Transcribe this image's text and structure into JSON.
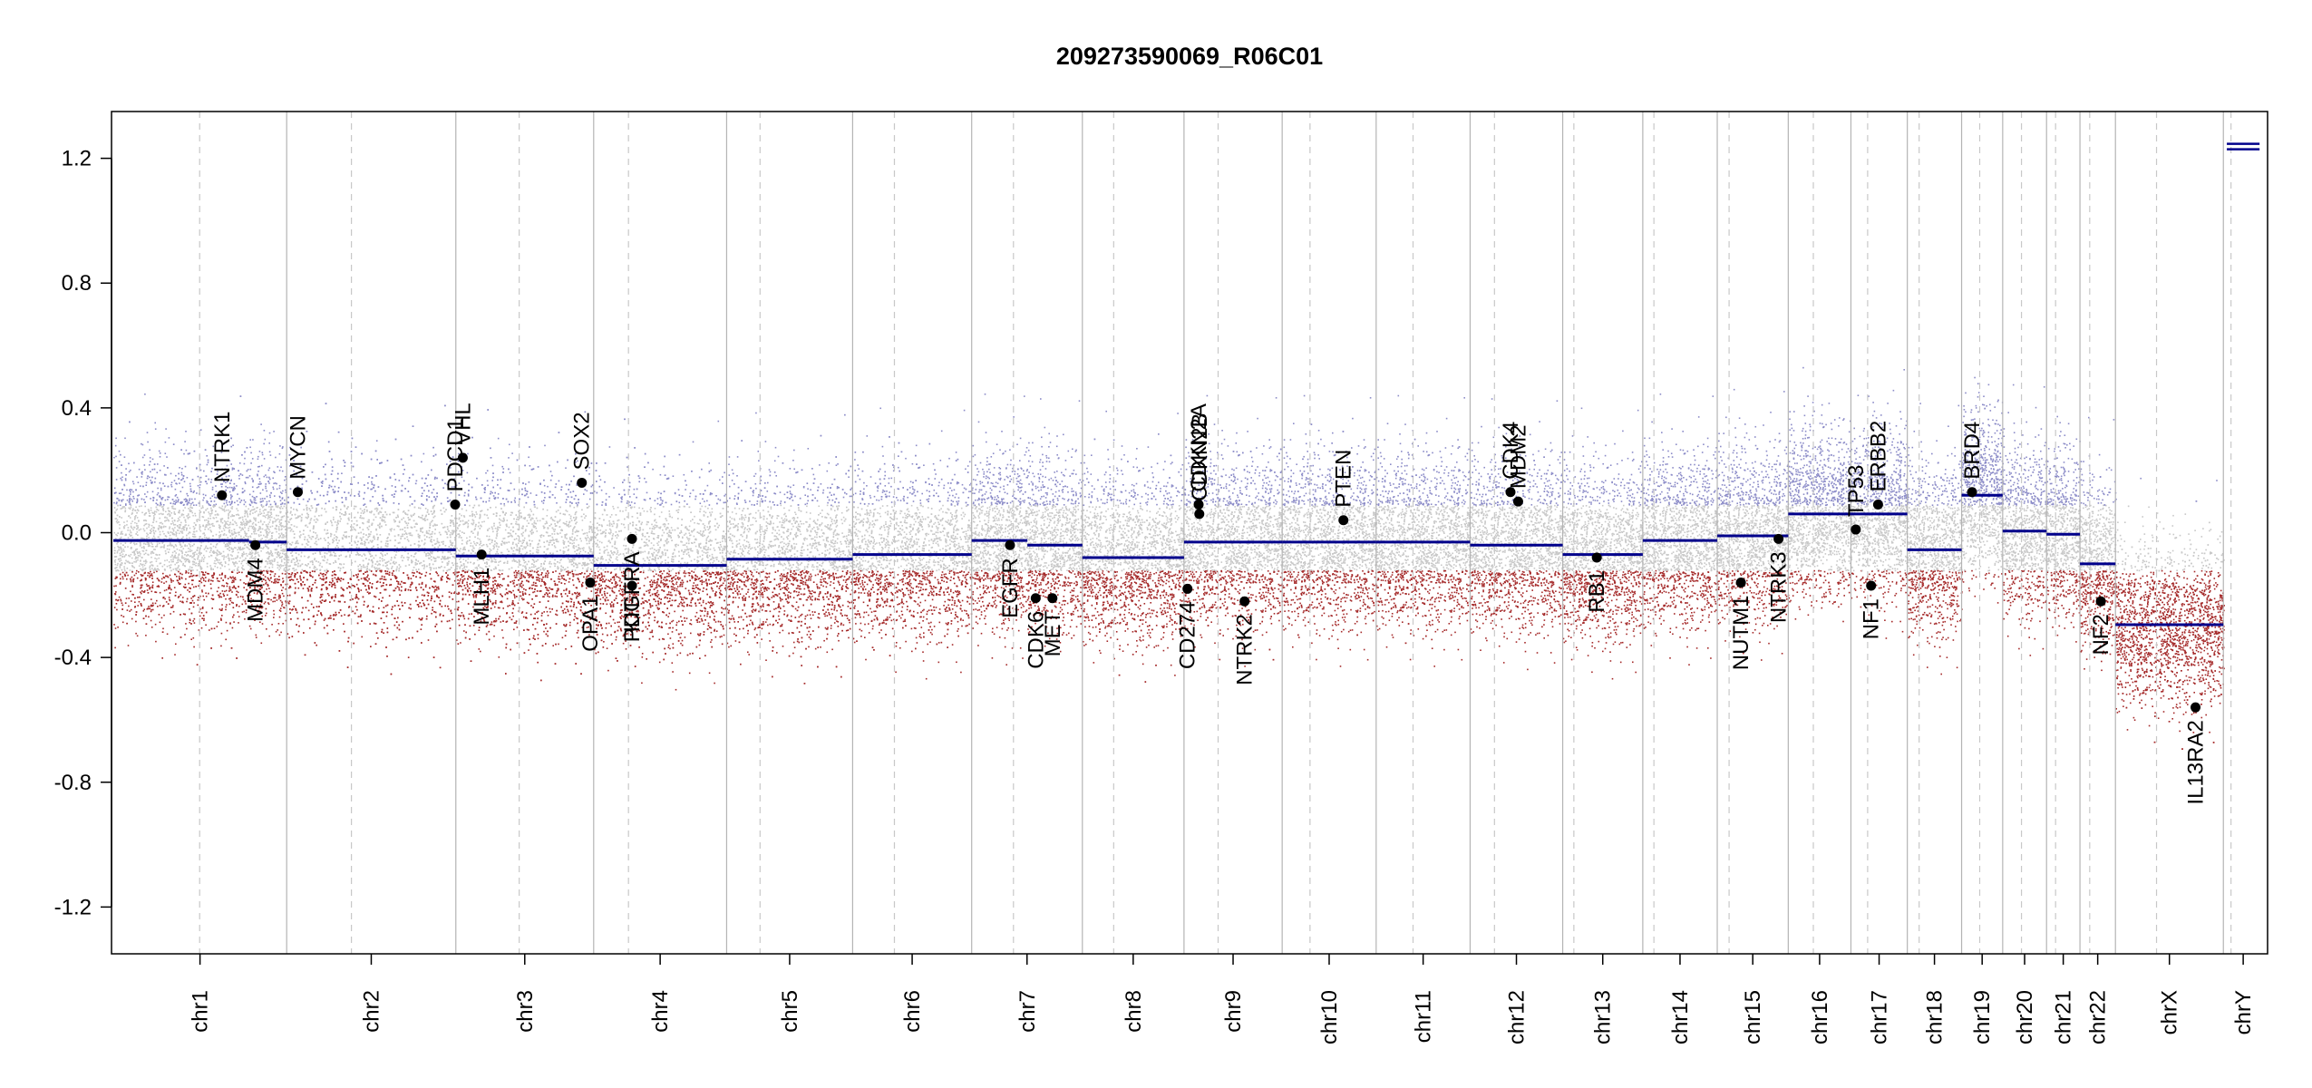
{
  "chart_data": {
    "type": "scatter",
    "title": "209273590069_R06C01",
    "xlabel": "",
    "ylabel": "",
    "ylim": [
      -1.35,
      1.35
    ],
    "yticks": [
      -1.2,
      -0.8,
      -0.4,
      0.0,
      0.4,
      0.8,
      1.2
    ],
    "ytick_labels": [
      "-1.2",
      "-0.8",
      "-0.4",
      "0.0",
      "0.4",
      "0.8",
      "1.2"
    ],
    "grid": false,
    "colors": {
      "segment": "#00008b",
      "gain_points": "#8c8cc8",
      "loss_points": "#a52a2a",
      "neutral_points": "#c8c8c8",
      "boundary_line": "#b4b4b4",
      "centromere_line": "#c8c8c8",
      "gene_marker": "#000000"
    },
    "chromosomes": [
      {
        "name": "chr1",
        "length": 249,
        "centromere": 124,
        "segments": [
          {
            "start": 0,
            "end": 195,
            "value": -0.025
          },
          {
            "start": 195,
            "end": 249,
            "value": -0.03
          }
        ]
      },
      {
        "name": "chr2",
        "length": 243,
        "centromere": 93,
        "segments": [
          {
            "start": 0,
            "end": 243,
            "value": -0.055
          }
        ]
      },
      {
        "name": "chr3",
        "length": 198,
        "centromere": 91,
        "segments": [
          {
            "start": 0,
            "end": 198,
            "value": -0.075
          }
        ]
      },
      {
        "name": "chr4",
        "length": 191,
        "centromere": 50,
        "segments": [
          {
            "start": 0,
            "end": 191,
            "value": -0.105
          }
        ]
      },
      {
        "name": "chr5",
        "length": 181,
        "centromere": 48,
        "segments": [
          {
            "start": 0,
            "end": 181,
            "value": -0.085
          }
        ]
      },
      {
        "name": "chr6",
        "length": 171,
        "centromere": 60,
        "segments": [
          {
            "start": 0,
            "end": 171,
            "value": -0.07
          }
        ]
      },
      {
        "name": "chr7",
        "length": 159,
        "centromere": 60,
        "segments": [
          {
            "start": 0,
            "end": 80,
            "value": -0.025
          },
          {
            "start": 80,
            "end": 159,
            "value": -0.04
          }
        ]
      },
      {
        "name": "chr8",
        "length": 146,
        "centromere": 45,
        "segments": [
          {
            "start": 0,
            "end": 146,
            "value": -0.08
          }
        ]
      },
      {
        "name": "chr9",
        "length": 141,
        "centromere": 49,
        "segments": [
          {
            "start": 0,
            "end": 141,
            "value": -0.03
          }
        ]
      },
      {
        "name": "chr10",
        "length": 135,
        "centromere": 40,
        "segments": [
          {
            "start": 0,
            "end": 135,
            "value": -0.03
          }
        ]
      },
      {
        "name": "chr11",
        "length": 135,
        "centromere": 53,
        "segments": [
          {
            "start": 0,
            "end": 135,
            "value": -0.03
          }
        ]
      },
      {
        "name": "chr12",
        "length": 133,
        "centromere": 35,
        "segments": [
          {
            "start": 0,
            "end": 133,
            "value": -0.04
          }
        ]
      },
      {
        "name": "chr13",
        "length": 115,
        "centromere": 16,
        "segments": [
          {
            "start": 0,
            "end": 115,
            "value": -0.07
          }
        ]
      },
      {
        "name": "chr14",
        "length": 107,
        "centromere": 16,
        "segments": [
          {
            "start": 0,
            "end": 107,
            "value": -0.025
          }
        ]
      },
      {
        "name": "chr15",
        "length": 102,
        "centromere": 17,
        "segments": [
          {
            "start": 0,
            "end": 102,
            "value": -0.01
          }
        ]
      },
      {
        "name": "chr16",
        "length": 90,
        "centromere": 36,
        "segments": [
          {
            "start": 0,
            "end": 90,
            "value": 0.06
          }
        ]
      },
      {
        "name": "chr17",
        "length": 81,
        "centromere": 24,
        "segments": [
          {
            "start": 0,
            "end": 81,
            "value": 0.06
          }
        ]
      },
      {
        "name": "chr18",
        "length": 78,
        "centromere": 17,
        "segments": [
          {
            "start": 0,
            "end": 78,
            "value": -0.055
          }
        ]
      },
      {
        "name": "chr19",
        "length": 59,
        "centromere": 26,
        "segments": [
          {
            "start": 0,
            "end": 59,
            "value": 0.12
          }
        ]
      },
      {
        "name": "chr20",
        "length": 63,
        "centromere": 27,
        "segments": [
          {
            "start": 0,
            "end": 63,
            "value": 0.005
          }
        ]
      },
      {
        "name": "chr21",
        "length": 48,
        "centromere": 13,
        "segments": [
          {
            "start": 0,
            "end": 48,
            "value": -0.005
          }
        ]
      },
      {
        "name": "chr22",
        "length": 51,
        "centromere": 14,
        "segments": [
          {
            "start": 0,
            "end": 51,
            "value": -0.1
          }
        ]
      },
      {
        "name": "chrX",
        "length": 155,
        "centromere": 59,
        "segments": [
          {
            "start": 0,
            "end": 155,
            "value": -0.295
          }
        ]
      },
      {
        "name": "chrY",
        "length": 57,
        "centromere": 11,
        "segments": [
          {
            "start": 0,
            "end": 57,
            "value": 1.235
          }
        ]
      }
    ],
    "genes": [
      {
        "name": "NTRK1",
        "chrom": "chr1",
        "pos": 156,
        "value": 0.12,
        "label_side": "above"
      },
      {
        "name": "MDM4",
        "chrom": "chr1",
        "pos": 204,
        "value": -0.04,
        "label_side": "below"
      },
      {
        "name": "MYCN",
        "chrom": "chr2",
        "pos": 16,
        "value": 0.13,
        "label_side": "above"
      },
      {
        "name": "PDCD1",
        "chrom": "chr2",
        "pos": 242,
        "value": 0.09,
        "label_side": "above"
      },
      {
        "name": "VHL",
        "chrom": "chr3",
        "pos": 10,
        "value": 0.24,
        "label_side": "above"
      },
      {
        "name": "MLH1",
        "chrom": "chr3",
        "pos": 37,
        "value": -0.07,
        "label_side": "below"
      },
      {
        "name": "SOX2",
        "chrom": "chr3",
        "pos": 181,
        "value": 0.16,
        "label_side": "above"
      },
      {
        "name": "OPA1",
        "chrom": "chr3",
        "pos": 193,
        "value": -0.16,
        "label_side": "below"
      },
      {
        "name": "PDGFRA",
        "chrom": "chr4",
        "pos": 55,
        "value": -0.02,
        "label_side": "below"
      },
      {
        "name": "KIT",
        "chrom": "chr4",
        "pos": 55,
        "value": -0.17,
        "label_side": "below"
      },
      {
        "name": "EGFR",
        "chrom": "chr7",
        "pos": 55,
        "value": -0.04,
        "label_side": "below"
      },
      {
        "name": "CDK6",
        "chrom": "chr7",
        "pos": 92,
        "value": -0.21,
        "label_side": "below"
      },
      {
        "name": "MET",
        "chrom": "chr7",
        "pos": 116,
        "value": -0.21,
        "label_side": "below"
      },
      {
        "name": "CD274",
        "chrom": "chr9",
        "pos": 5,
        "value": -0.18,
        "label_side": "below"
      },
      {
        "name": "CDKN2A",
        "chrom": "chr9",
        "pos": 21,
        "value": 0.09,
        "label_side": "above"
      },
      {
        "name": "CDKN2B",
        "chrom": "chr9",
        "pos": 22,
        "value": 0.06,
        "label_side": "above"
      },
      {
        "name": "NTRK2",
        "chrom": "chr9",
        "pos": 87,
        "value": -0.22,
        "label_side": "below"
      },
      {
        "name": "PTEN",
        "chrom": "chr10",
        "pos": 88,
        "value": 0.04,
        "label_side": "above"
      },
      {
        "name": "CDK4",
        "chrom": "chr12",
        "pos": 58,
        "value": 0.13,
        "label_side": "above"
      },
      {
        "name": "MDM2",
        "chrom": "chr12",
        "pos": 69,
        "value": 0.1,
        "label_side": "above"
      },
      {
        "name": "RB1",
        "chrom": "chr13",
        "pos": 49,
        "value": -0.08,
        "label_side": "below"
      },
      {
        "name": "NUTM1",
        "chrom": "chr15",
        "pos": 34,
        "value": -0.16,
        "label_side": "below"
      },
      {
        "name": "NTRK3",
        "chrom": "chr15",
        "pos": 88,
        "value": -0.02,
        "label_side": "below"
      },
      {
        "name": "TP53",
        "chrom": "chr17",
        "pos": 7,
        "value": 0.01,
        "label_side": "above"
      },
      {
        "name": "NF1",
        "chrom": "chr17",
        "pos": 29,
        "value": -0.17,
        "label_side": "below"
      },
      {
        "name": "ERBB2",
        "chrom": "chr17",
        "pos": 39,
        "value": 0.09,
        "label_side": "above"
      },
      {
        "name": "BRD4",
        "chrom": "chr19",
        "pos": 15,
        "value": 0.13,
        "label_side": "above"
      },
      {
        "name": "NF2",
        "chrom": "chr22",
        "pos": 30,
        "value": -0.22,
        "label_side": "below"
      },
      {
        "name": "IL13RA2",
        "chrom": "chrX",
        "pos": 115,
        "value": -0.56,
        "label_side": "below"
      }
    ]
  }
}
